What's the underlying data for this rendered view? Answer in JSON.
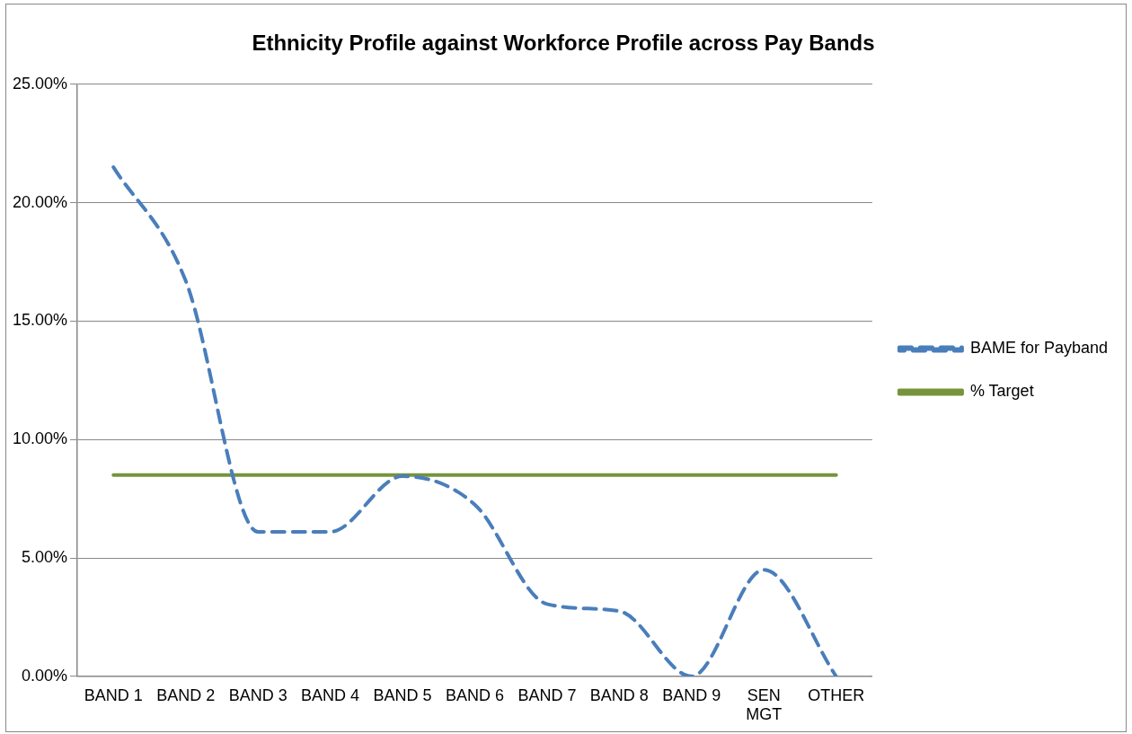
{
  "chart_data": {
    "type": "line",
    "title": "Ethnicity Profile against Workforce Profile across Pay Bands",
    "categories": [
      "BAND 1",
      "BAND 2",
      "BAND 3",
      "BAND 4",
      "BAND 5",
      "BAND 6",
      "BAND 7",
      "BAND 8",
      "BAND 9",
      "SEN MGT",
      "OTHER"
    ],
    "series": [
      {
        "name": "BAME for Payband",
        "color": "#4a7ebb",
        "line_style": "dashed",
        "values": [
          21.5,
          16.7,
          6.1,
          6.1,
          8.45,
          7.25,
          3.05,
          2.75,
          0,
          4.5,
          0
        ]
      },
      {
        "name": "% Target",
        "color": "#77933c",
        "line_style": "solid",
        "values": [
          8.5,
          8.5,
          8.5,
          8.5,
          8.5,
          8.5,
          8.5,
          8.5,
          8.5,
          8.5,
          8.5
        ]
      }
    ],
    "ylim": [
      0,
      25
    ],
    "yticks": [
      {
        "value": 0,
        "label": "0.00%"
      },
      {
        "value": 5,
        "label": "5.00%"
      },
      {
        "value": 10,
        "label": "10.00%"
      },
      {
        "value": 15,
        "label": "15.00%"
      },
      {
        "value": 20,
        "label": "20.00%"
      },
      {
        "value": 25,
        "label": "25.00%"
      }
    ],
    "grid": "y",
    "legend": "right",
    "marker": "none"
  }
}
